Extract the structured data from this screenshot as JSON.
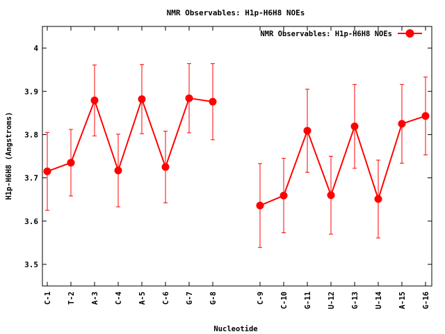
{
  "chart_data": {
    "type": "line",
    "title": "NMR Observables: H1p-H6H8 NOEs",
    "xlabel": "Nucleotide",
    "ylabel": "H1p-H6H8 (Angstroms)",
    "ylim": [
      3.45,
      4.05
    ],
    "yticks": [
      3.5,
      3.6,
      3.7,
      3.8,
      3.9,
      4.0
    ],
    "ytick_labels": [
      "3.5",
      "3.6",
      "3.7",
      "3.8",
      "3.9",
      "4"
    ],
    "grid": false,
    "legend_position": "top-right",
    "series": [
      {
        "name": "NMR Observables: H1p-H6H8 NOEs",
        "color": "#ff0000",
        "segments": [
          {
            "points": [
              {
                "label": "C-1",
                "y": 3.715,
                "err": 0.09
              },
              {
                "label": "T-2",
                "y": 3.735,
                "err": 0.077
              },
              {
                "label": "A-3",
                "y": 3.879,
                "err": 0.082
              },
              {
                "label": "C-4",
                "y": 3.717,
                "err": 0.084
              },
              {
                "label": "A-5",
                "y": 3.882,
                "err": 0.08
              },
              {
                "label": "C-6",
                "y": 3.725,
                "err": 0.083
              },
              {
                "label": "G-7",
                "y": 3.884,
                "err": 0.08
              },
              {
                "label": "G-8",
                "y": 3.876,
                "err": 0.088
              }
            ]
          },
          {
            "points": [
              {
                "label": "C-9",
                "y": 3.636,
                "err": 0.097
              },
              {
                "label": "C-10",
                "y": 3.659,
                "err": 0.086
              },
              {
                "label": "G-11",
                "y": 3.809,
                "err": 0.096
              },
              {
                "label": "U-12",
                "y": 3.66,
                "err": 0.09
              },
              {
                "label": "G-13",
                "y": 3.819,
                "err": 0.097
              },
              {
                "label": "U-14",
                "y": 3.651,
                "err": 0.09
              },
              {
                "label": "A-15",
                "y": 3.825,
                "err": 0.091
              },
              {
                "label": "G-16",
                "y": 3.843,
                "err": 0.09
              }
            ]
          }
        ]
      }
    ]
  }
}
